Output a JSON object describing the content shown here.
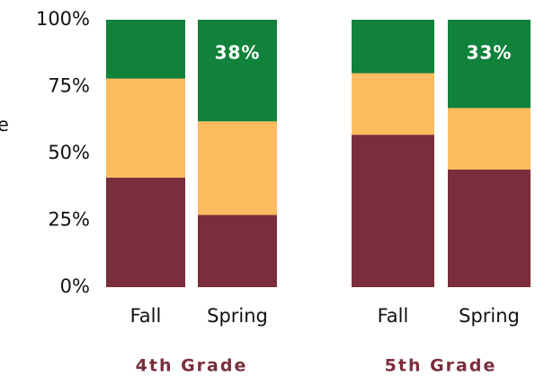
{
  "chart_data": [
    {
      "type": "bar",
      "stacked": true,
      "title": "4th Grade",
      "ylabel": "e",
      "categories": [
        "Fall",
        "Spring"
      ],
      "series": [
        {
          "color": "#7a2e3b",
          "values": [
            41,
            27
          ]
        },
        {
          "color": "#fdbb5f",
          "values": [
            37,
            35
          ]
        },
        {
          "color": "#11823b",
          "values": [
            22,
            38
          ],
          "value_labels": [
            null,
            "38%"
          ]
        }
      ],
      "ylim": [
        0,
        100
      ],
      "yticks": [
        {
          "value": 0,
          "label": "0%"
        },
        {
          "value": 25,
          "label": "25%"
        },
        {
          "value": 50,
          "label": "50%"
        },
        {
          "value": 75,
          "label": "75%"
        },
        {
          "value": 100,
          "label": "100%"
        }
      ]
    },
    {
      "type": "bar",
      "stacked": true,
      "title": "5th Grade",
      "categories": [
        "Fall",
        "Spring"
      ],
      "series": [
        {
          "color": "#7a2e3b",
          "values": [
            57,
            44
          ]
        },
        {
          "color": "#fdbb5f",
          "values": [
            23,
            23
          ]
        },
        {
          "color": "#11823b",
          "values": [
            20,
            33
          ],
          "value_labels": [
            null,
            "33%"
          ]
        }
      ],
      "ylim": [
        0,
        100
      ]
    }
  ]
}
